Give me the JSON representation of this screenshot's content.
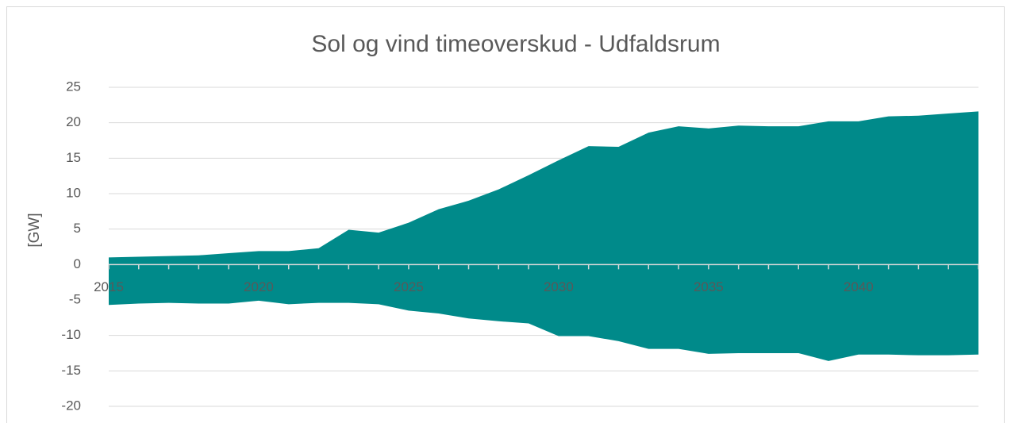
{
  "chart_data": {
    "type": "area",
    "title": "Sol og vind timeoverskud -  Udfaldsrum",
    "y_label": "[GW]",
    "x": [
      2015,
      2016,
      2017,
      2018,
      2019,
      2020,
      2021,
      2022,
      2023,
      2024,
      2025,
      2026,
      2027,
      2028,
      2029,
      2030,
      2031,
      2032,
      2033,
      2034,
      2035,
      2036,
      2037,
      2038,
      2039,
      2040,
      2041,
      2042,
      2043,
      2044
    ],
    "series": [
      {
        "color": "#008a8a",
        "values": [
          1.0,
          1.1,
          1.2,
          1.3,
          1.6,
          1.9,
          1.9,
          2.3,
          4.9,
          4.5,
          5.9,
          7.8,
          9.0,
          10.6,
          12.6,
          14.7,
          16.7,
          16.6,
          18.6,
          19.5,
          19.2,
          19.6,
          19.5,
          19.5,
          20.2,
          20.2,
          20.9,
          21.0,
          21.3,
          21.6
        ]
      },
      {
        "color": "#008a8a",
        "values": [
          -5.7,
          -5.5,
          -5.4,
          -5.5,
          -5.5,
          -5.1,
          -5.6,
          -5.4,
          -5.4,
          -5.6,
          -6.5,
          -6.9,
          -7.6,
          -8.0,
          -8.3,
          -10.1,
          -10.1,
          -10.8,
          -11.9,
          -11.9,
          -12.6,
          -12.5,
          -12.5,
          -12.5,
          -13.6,
          -12.7,
          -12.7,
          -12.8,
          -12.8,
          -12.7
        ]
      }
    ],
    "xlim": [
      2015,
      2044
    ],
    "xticks": [
      2015,
      2020,
      2025,
      2030,
      2035,
      2040
    ],
    "ylim": [
      -20,
      25
    ],
    "yticks": [
      -20,
      -15,
      -10,
      -5,
      0,
      5,
      10,
      15,
      20,
      25
    ],
    "grid": true
  }
}
